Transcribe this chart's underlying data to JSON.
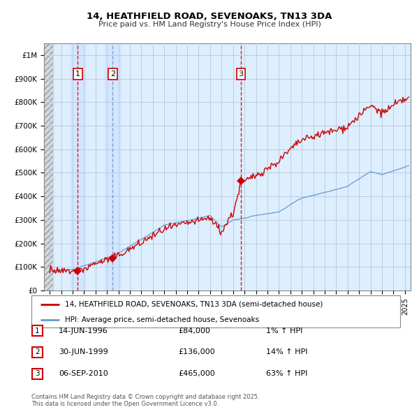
{
  "title1": "14, HEATHFIELD ROAD, SEVENOAKS, TN13 3DA",
  "title2": "Price paid vs. HM Land Registry's House Price Index (HPI)",
  "ylim": [
    0,
    1050000
  ],
  "xlim_year": [
    1993.5,
    2025.5
  ],
  "yticks": [
    0,
    100000,
    200000,
    300000,
    400000,
    500000,
    600000,
    700000,
    800000,
    900000,
    1000000
  ],
  "ytick_labels": [
    "£0",
    "£100K",
    "£200K",
    "£300K",
    "£400K",
    "£500K",
    "£600K",
    "£700K",
    "£800K",
    "£900K",
    "£1M"
  ],
  "sales": [
    {
      "year": 1996.45,
      "price": 84000,
      "label": "1",
      "vline_color": "#cc0000",
      "vline_style": "--"
    },
    {
      "year": 1999.5,
      "price": 136000,
      "label": "2",
      "vline_color": "#6699cc",
      "vline_style": "--"
    },
    {
      "year": 2010.68,
      "price": 465000,
      "label": "3",
      "vline_color": "#cc0000",
      "vline_style": "--"
    }
  ],
  "sale_dates": [
    "14-JUN-1996",
    "30-JUN-1999",
    "06-SEP-2010"
  ],
  "sale_prices": [
    "£84,000",
    "£136,000",
    "£465,000"
  ],
  "sale_hpi": [
    "1% ↑ HPI",
    "14% ↑ HPI",
    "63% ↑ HPI"
  ],
  "legend_label1": "14, HEATHFIELD ROAD, SEVENOAKS, TN13 3DA (semi-detached house)",
  "legend_label2": "HPI: Average price, semi-detached house, Sevenoaks",
  "footnote": "Contains HM Land Registry data © Crown copyright and database right 2025.\nThis data is licensed under the Open Government Licence v3.0.",
  "line_color_red": "#cc0000",
  "line_color_blue": "#6699cc",
  "bg_color": "#ddeeff",
  "grid_color": "#bbccdd",
  "hatch_end_year": 1994.3
}
